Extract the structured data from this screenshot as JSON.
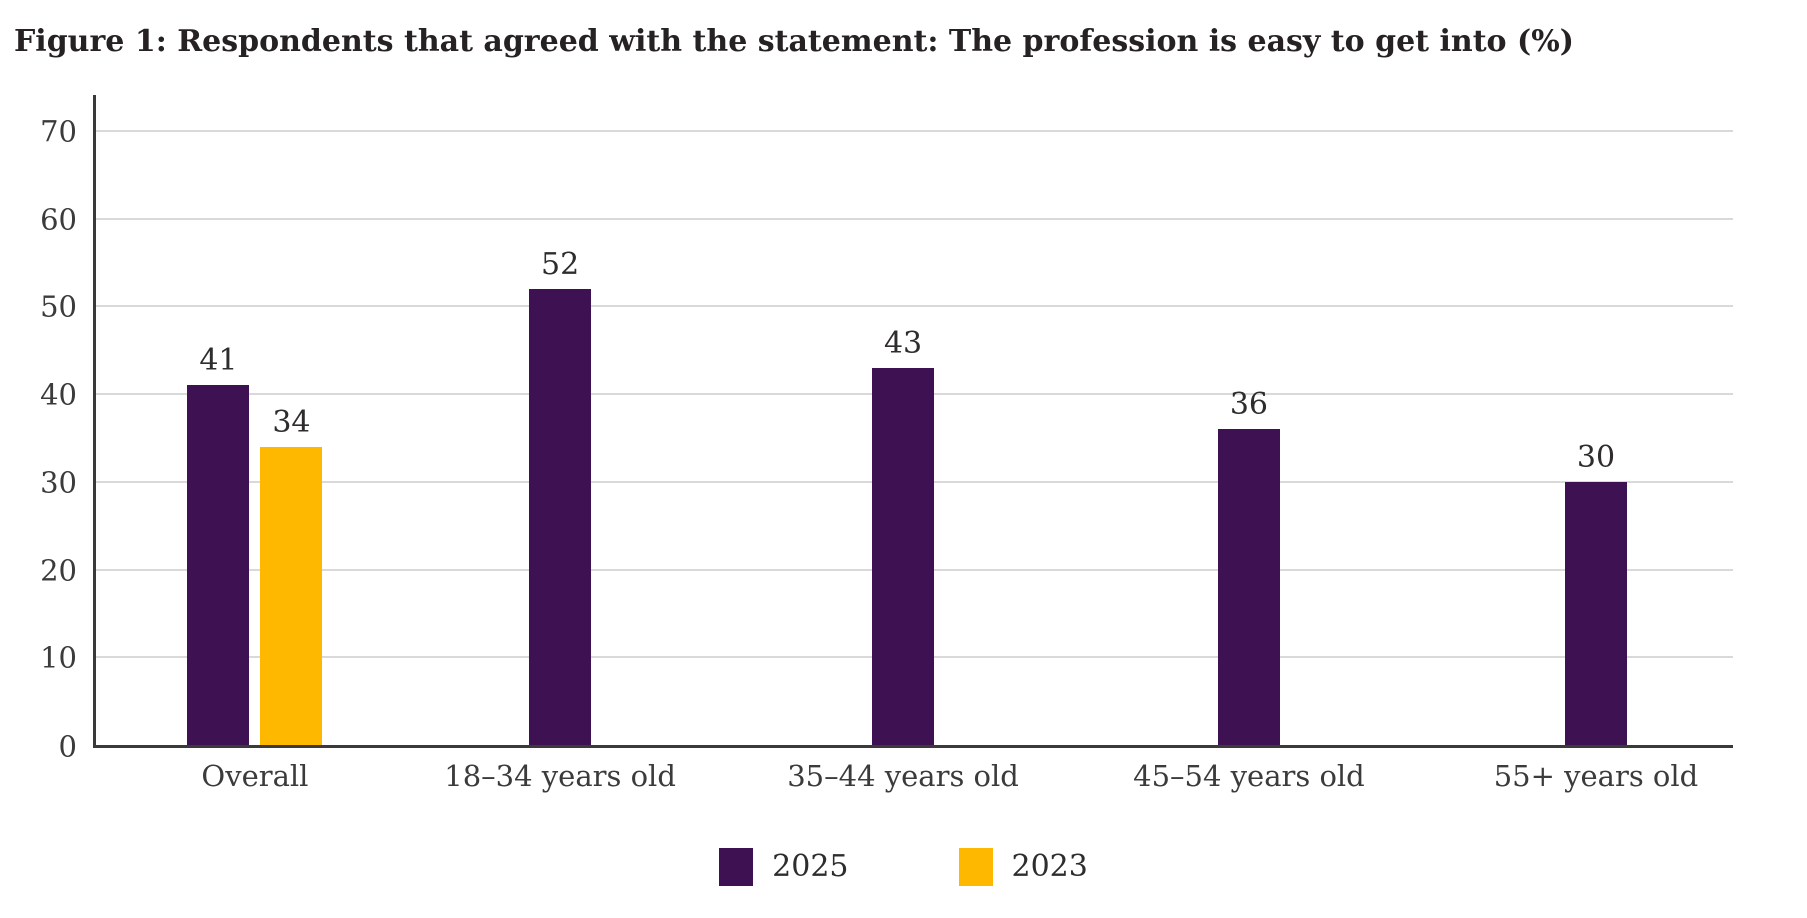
{
  "chart_data": {
    "type": "bar",
    "title": "Figure 1: Respondents that agreed with the statement: The profession is easy to get into (%)",
    "categories": [
      "Overall",
      "18–34 years old",
      "35–44 years old",
      "45–54 years old",
      "55+ years old"
    ],
    "series": [
      {
        "name": "2025",
        "color": "#3E1152",
        "values": [
          41,
          52,
          43,
          36,
          30
        ]
      },
      {
        "name": "2023",
        "color": "#FFB800",
        "values": [
          34,
          null,
          null,
          null,
          null
        ]
      }
    ],
    "xlabel": "",
    "ylabel": "",
    "ylim": [
      0,
      70
    ],
    "yticks": [
      0,
      10,
      20,
      30,
      40,
      50,
      60,
      70
    ],
    "grid": "horizontal",
    "value_labels": true,
    "legend_position": "bottom",
    "legend": [
      "2025",
      "2023"
    ],
    "colors": {
      "axis_line": "#3A3A3B",
      "gridline": "#D9D9D9",
      "tick_text": "#3B3B3B",
      "value_text": "#2E2C2D",
      "title_text": "#262224",
      "background": "#FFFFFF"
    }
  }
}
